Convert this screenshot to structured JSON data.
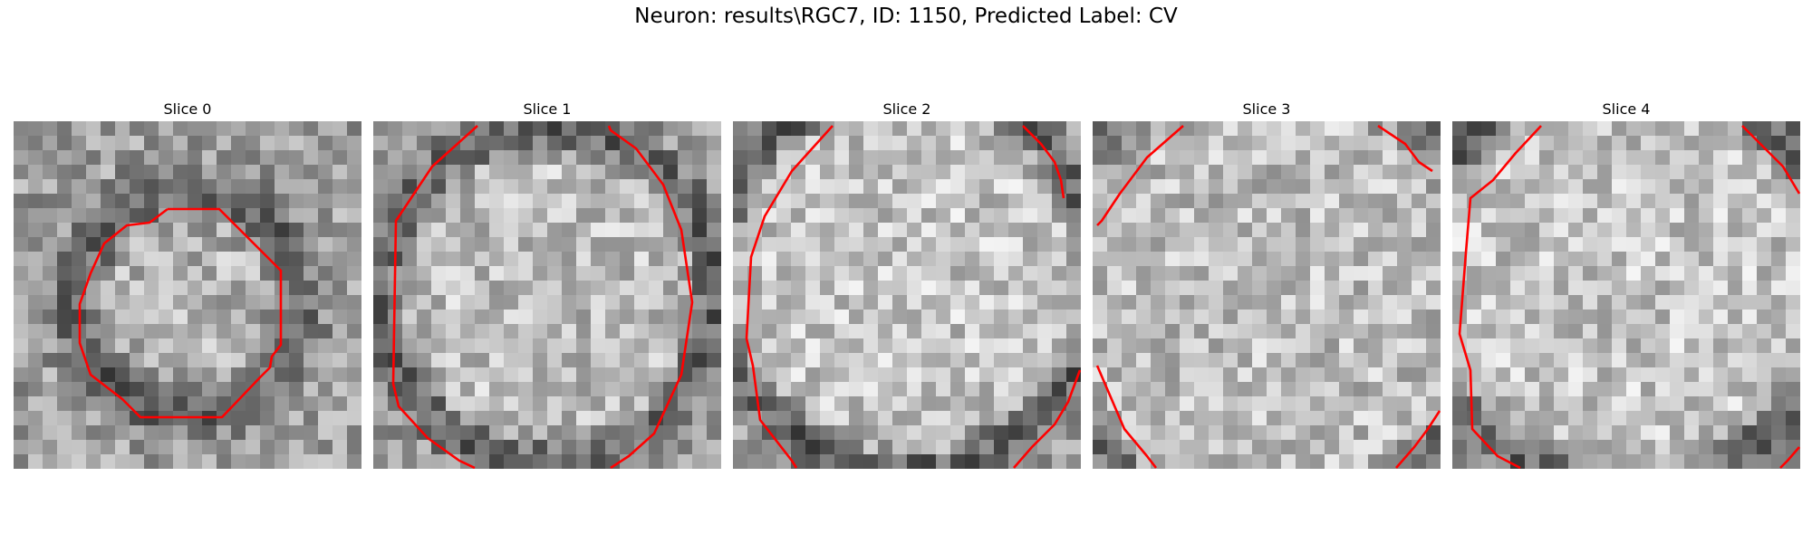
{
  "figure": {
    "title": "Neuron: results\\RGC7, ID: 1150, Predicted Label: CV"
  },
  "slices": [
    {
      "label": "Slice 0",
      "grid": 24,
      "seed": 11,
      "contour_color": "#ff0000"
    },
    {
      "label": "Slice 1",
      "grid": 24,
      "seed": 23,
      "contour_color": "#ff0000"
    },
    {
      "label": "Slice 2",
      "grid": 24,
      "seed": 37,
      "contour_color": "#ff0000"
    },
    {
      "label": "Slice 3",
      "grid": 24,
      "seed": 41,
      "contour_color": "#ff0000"
    },
    {
      "label": "Slice 4",
      "grid": 24,
      "seed": 53,
      "contour_color": "#ff0000"
    }
  ]
}
